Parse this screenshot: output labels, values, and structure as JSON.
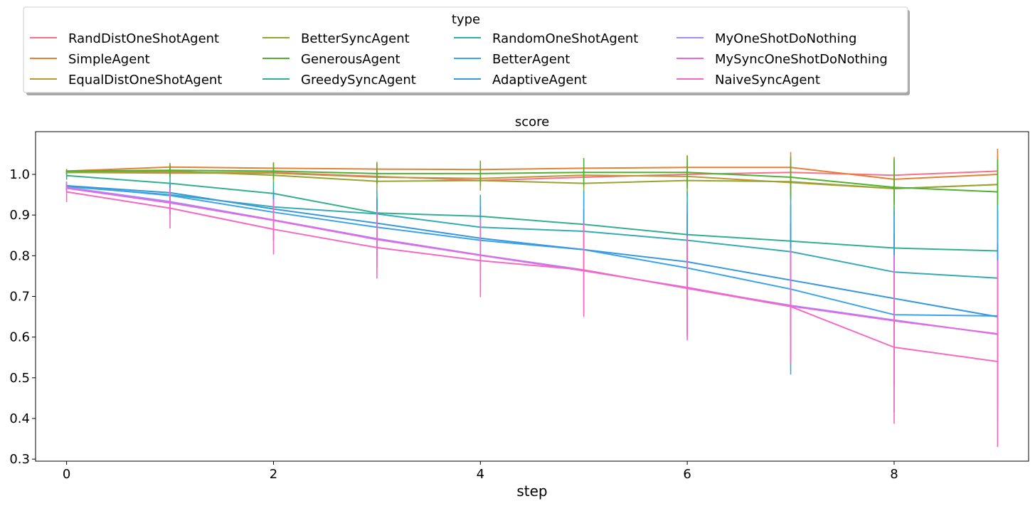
{
  "chart_data": {
    "type": "line",
    "title": "score",
    "xlabel": "step",
    "ylabel": "",
    "xlim": [
      -0.3,
      9.3
    ],
    "ylim": [
      0.295,
      1.105
    ],
    "x_ticks": [
      0,
      2,
      4,
      6,
      8
    ],
    "y_ticks": [
      0.3,
      0.4,
      0.5,
      0.6,
      0.7,
      0.8,
      0.9,
      1.0
    ],
    "x_tick_labels": [
      "0",
      "2",
      "4",
      "6",
      "8"
    ],
    "y_tick_labels": [
      "0.3",
      "0.4",
      "0.5",
      "0.6",
      "0.7",
      "0.8",
      "0.9",
      "1.0"
    ],
    "grid": false,
    "legend": {
      "title": "type",
      "placement": "above plot, top-left",
      "columns": 4
    },
    "x": [
      0,
      1,
      2,
      3,
      4,
      5,
      6,
      7,
      8,
      9
    ],
    "series": [
      {
        "name": "RandDistOneShotAgent",
        "color": "#f77189",
        "values": [
          1.005,
          1.005,
          1.005,
          0.995,
          0.985,
          0.993,
          1.0,
          1.005,
          0.998,
          1.008
        ],
        "err": [
          0.005,
          0.01,
          0.012,
          0.015,
          0.018,
          0.02,
          0.025,
          0.03,
          0.035,
          0.04
        ]
      },
      {
        "name": "SimpleAgent",
        "color": "#e18234",
        "values": [
          1.008,
          1.018,
          1.015,
          1.013,
          1.012,
          1.015,
          1.017,
          1.017,
          0.988,
          1.0
        ],
        "err": [
          0.005,
          0.01,
          0.015,
          0.018,
          0.022,
          0.025,
          0.03,
          0.038,
          0.055,
          0.063
        ]
      },
      {
        "name": "EqualDistOneShotAgent",
        "color": "#bb9832",
        "values": [
          1.005,
          1.003,
          1.003,
          0.993,
          0.99,
          0.998,
          0.995,
          0.98,
          0.965,
          0.975
        ],
        "err": [
          0.005,
          0.01,
          0.012,
          0.015,
          0.018,
          0.02,
          0.025,
          0.03,
          0.035,
          0.04
        ]
      },
      {
        "name": "BetterSyncAgent",
        "color": "#97a431",
        "values": [
          1.005,
          1.008,
          0.998,
          0.983,
          0.985,
          0.978,
          0.985,
          0.982,
          0.965,
          0.975
        ],
        "err": [
          0.005,
          0.012,
          0.015,
          0.02,
          0.025,
          0.03,
          0.04,
          0.045,
          0.04,
          0.05
        ]
      },
      {
        "name": "GenerousAgent",
        "color": "#50b131",
        "values": [
          1.008,
          1.01,
          1.008,
          1.002,
          1.002,
          1.005,
          1.005,
          0.993,
          0.968,
          0.957
        ],
        "err": [
          0.005,
          0.015,
          0.02,
          0.025,
          0.03,
          0.035,
          0.04,
          0.05,
          0.07,
          0.08
        ]
      },
      {
        "name": "GreedySyncAgent",
        "color": "#34ae91",
        "values": [
          0.997,
          0.978,
          0.953,
          0.905,
          0.897,
          0.877,
          0.852,
          0.836,
          0.819,
          0.812
        ],
        "err": [
          0.01,
          0.02,
          0.03,
          0.04,
          0.05,
          0.06,
          0.07,
          0.08,
          0.09,
          0.1
        ]
      },
      {
        "name": "RandomOneShotAgent",
        "color": "#37abb5",
        "values": [
          0.97,
          0.95,
          0.92,
          0.903,
          0.87,
          0.86,
          0.838,
          0.81,
          0.76,
          0.745
        ],
        "err": [
          0.01,
          0.025,
          0.04,
          0.06,
          0.08,
          0.1,
          0.12,
          0.14,
          0.16,
          0.18
        ]
      },
      {
        "name": "BetterAgent",
        "color": "#3ba3ec",
        "values": [
          0.972,
          0.948,
          0.907,
          0.87,
          0.838,
          0.815,
          0.77,
          0.718,
          0.655,
          0.652
        ],
        "err": [
          0.01,
          0.03,
          0.05,
          0.07,
          0.1,
          0.13,
          0.16,
          0.21,
          0.24,
          0.26
        ]
      },
      {
        "name": "AdaptiveAgent",
        "color": "#3a98dc",
        "values": [
          0.972,
          0.955,
          0.915,
          0.88,
          0.843,
          0.815,
          0.785,
          0.74,
          0.695,
          0.65
        ],
        "err": [
          0.01,
          0.02,
          0.04,
          0.06,
          0.08,
          0.1,
          0.12,
          0.14,
          0.16,
          0.18
        ]
      },
      {
        "name": "MyOneShotDoNothing",
        "color": "#a48cf4",
        "values": [
          0.968,
          0.933,
          0.888,
          0.842,
          0.802,
          0.765,
          0.72,
          0.678,
          0.642,
          0.607
        ],
        "err": [
          0.01,
          0.03,
          0.05,
          0.07,
          0.09,
          0.11,
          0.12,
          0.14,
          0.16,
          0.18
        ]
      },
      {
        "name": "MySyncOneShotDoNothing",
        "color": "#e866e4",
        "values": [
          0.966,
          0.93,
          0.887,
          0.84,
          0.801,
          0.763,
          0.722,
          0.676,
          0.64,
          0.608
        ],
        "err": [
          0.01,
          0.03,
          0.05,
          0.07,
          0.09,
          0.11,
          0.12,
          0.14,
          0.16,
          0.18
        ]
      },
      {
        "name": "NaiveSyncAgent",
        "color": "#f569c2",
        "values": [
          0.957,
          0.917,
          0.865,
          0.82,
          0.788,
          0.765,
          0.72,
          0.675,
          0.575,
          0.54
        ],
        "err": [
          0.025,
          0.05,
          0.062,
          0.076,
          0.09,
          0.115,
          0.128,
          0.14,
          0.188,
          0.21
        ]
      }
    ]
  }
}
